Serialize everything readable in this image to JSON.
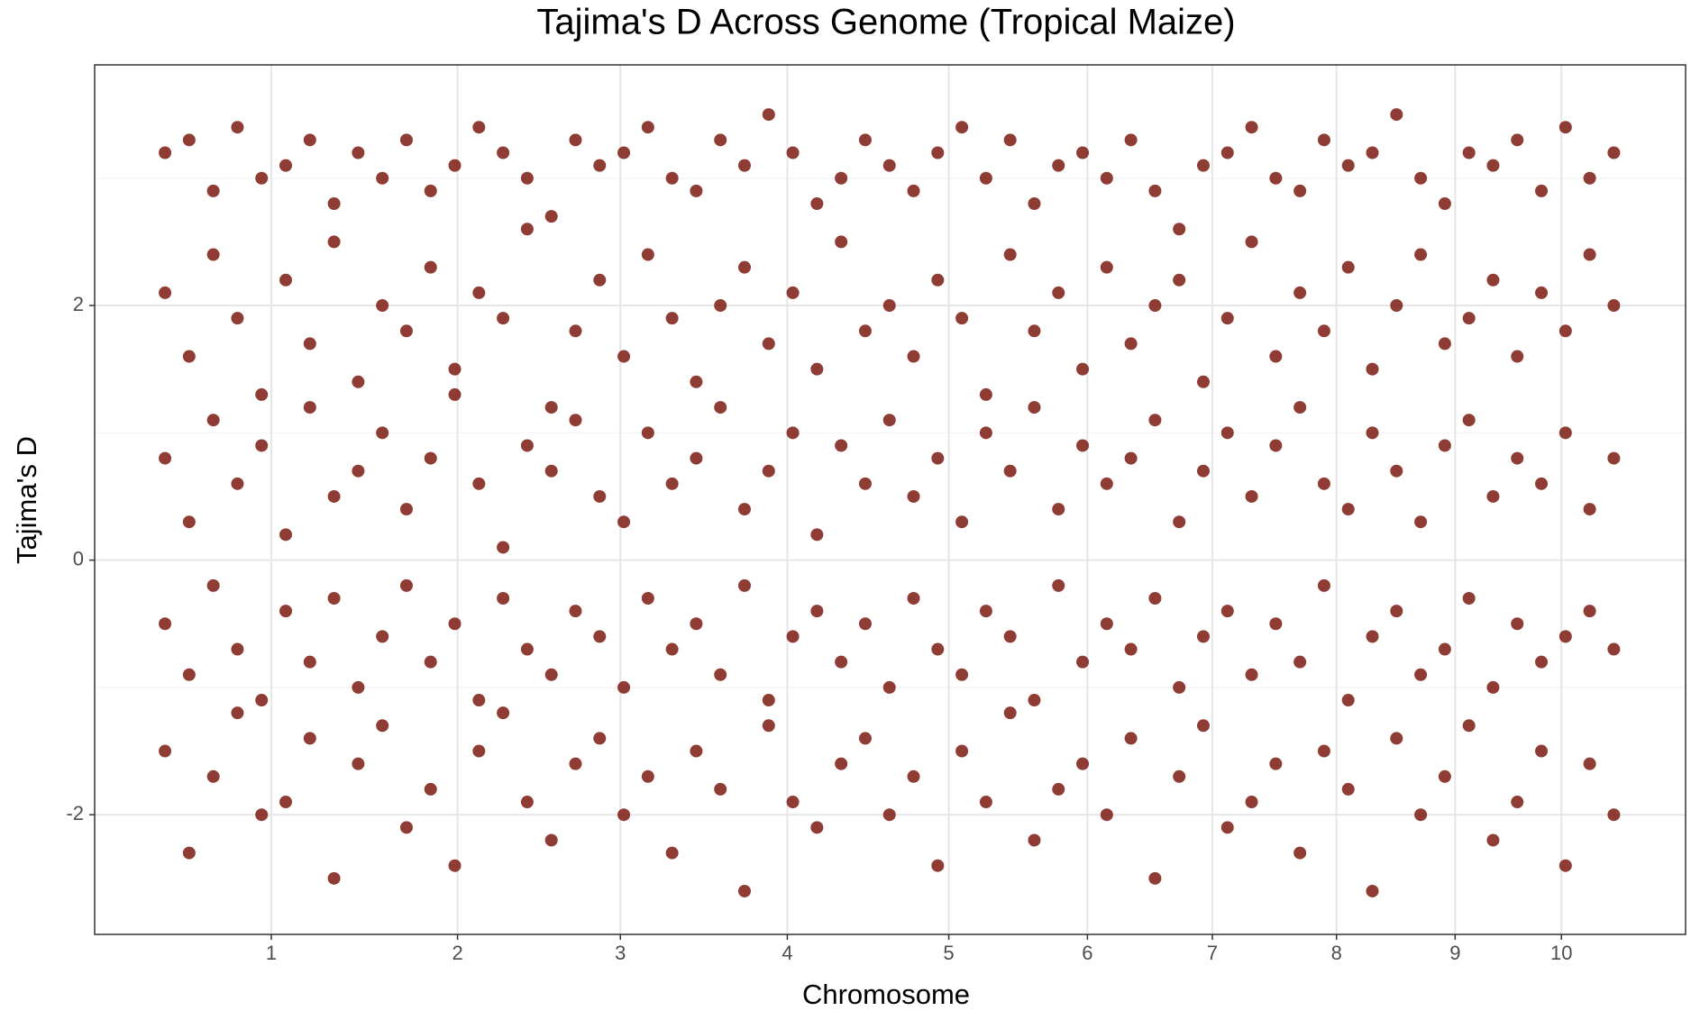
{
  "chart_data": {
    "type": "scatter",
    "title": "Tajima's D Across Genome (Tropical Maize)",
    "x_label": "Chromosome",
    "y_label": "Tajima's D",
    "xlim": [
      -102,
      2204
    ],
    "xticks": [
      {
        "value": 154,
        "label": "1"
      },
      {
        "value": 424,
        "label": "2"
      },
      {
        "value": 660,
        "label": "3"
      },
      {
        "value": 902,
        "label": "4"
      },
      {
        "value": 1136,
        "label": "5"
      },
      {
        "value": 1337,
        "label": "6"
      },
      {
        "value": 1518,
        "label": "7"
      },
      {
        "value": 1698,
        "label": "8"
      },
      {
        "value": 1870,
        "label": "9"
      },
      {
        "value": 2024,
        "label": "10"
      }
    ],
    "ylim": [
      -2.94,
      3.89
    ],
    "yticks": [
      -2,
      0,
      2
    ],
    "y_minor_ticks": [
      -1,
      1,
      3
    ],
    "grid": true,
    "x": [
      0,
      35,
      70,
      105,
      140,
      175,
      210,
      245,
      280,
      315,
      350,
      385,
      420,
      455,
      490,
      525,
      560,
      595,
      630,
      665,
      700,
      735,
      770,
      805,
      840,
      875,
      910,
      945,
      980,
      1015,
      1050,
      1085,
      1120,
      1155,
      1190,
      1225,
      1260,
      1295,
      1330,
      1365,
      1400,
      1435,
      1470,
      1505,
      1540,
      1575,
      1610,
      1645,
      1680,
      1715,
      1750,
      1785,
      1820,
      1855,
      1890,
      1925,
      1960,
      1995,
      2030,
      2065,
      2100
    ],
    "series": [
      {
        "color": "#7b1a10",
        "values": [
          3.2,
          3.3,
          2.9,
          3.4,
          3.0,
          3.1,
          3.3,
          2.8,
          3.2,
          3.0,
          3.3,
          2.9,
          3.1,
          3.4,
          3.2,
          3.0,
          2.7,
          3.3,
          3.1,
          3.2,
          3.4,
          3.0,
          2.9,
          3.3,
          3.1,
          3.5,
          3.2,
          2.8,
          3.0,
          3.3,
          3.1,
          2.9,
          3.2,
          3.4,
          3.0,
          3.3,
          2.8,
          3.1,
          3.2,
          3.0,
          3.3,
          2.9,
          2.6,
          3.1,
          3.2,
          3.4,
          3.0,
          2.9,
          3.3,
          3.1,
          3.2,
          3.5,
          3.0,
          2.8,
          3.2,
          3.1,
          3.3,
          2.9,
          3.4,
          3.0,
          3.2
        ]
      },
      {
        "color": "#7b1a10",
        "values": [
          2.1,
          1.6,
          2.4,
          1.9,
          1.3,
          2.2,
          1.7,
          2.5,
          1.4,
          2.0,
          1.8,
          2.3,
          1.5,
          2.1,
          1.9,
          2.6,
          1.2,
          1.8,
          2.2,
          1.6,
          2.4,
          1.9,
          1.4,
          2.0,
          2.3,
          1.7,
          2.1,
          1.5,
          2.5,
          1.8,
          2.0,
          1.6,
          2.2,
          1.9,
          1.3,
          2.4,
          1.8,
          2.1,
          1.5,
          2.3,
          1.7,
          2.0,
          2.2,
          1.4,
          1.9,
          2.5,
          1.6,
          2.1,
          1.8,
          2.3,
          1.5,
          2.0,
          2.4,
          1.7,
          1.9,
          2.2,
          1.6,
          2.1,
          1.8,
          2.4,
          2.0
        ]
      },
      {
        "color": "#7b1a10",
        "values": [
          0.8,
          0.3,
          1.1,
          0.6,
          0.9,
          0.2,
          1.2,
          0.5,
          0.7,
          1.0,
          0.4,
          0.8,
          1.3,
          0.6,
          0.1,
          0.9,
          0.7,
          1.1,
          0.5,
          0.3,
          1.0,
          0.6,
          0.8,
          1.2,
          0.4,
          0.7,
          1.0,
          0.2,
          0.9,
          0.6,
          1.1,
          0.5,
          0.8,
          0.3,
          1.0,
          0.7,
          1.2,
          0.4,
          0.9,
          0.6,
          0.8,
          1.1,
          0.3,
          0.7,
          1.0,
          0.5,
          0.9,
          1.2,
          0.6,
          0.4,
          1.0,
          0.7,
          0.3,
          0.9,
          1.1,
          0.5,
          0.8,
          0.6,
          1.0,
          0.4,
          0.8
        ]
      },
      {
        "color": "#7b1a10",
        "values": [
          -0.5,
          -0.9,
          -0.2,
          -0.7,
          -1.1,
          -0.4,
          -0.8,
          -0.3,
          -1.0,
          -0.6,
          -0.2,
          -0.8,
          -0.5,
          -1.1,
          -0.3,
          -0.7,
          -0.9,
          -0.4,
          -0.6,
          -1.0,
          -0.3,
          -0.7,
          -0.5,
          -0.9,
          -0.2,
          -1.1,
          -0.6,
          -0.4,
          -0.8,
          -0.5,
          -1.0,
          -0.3,
          -0.7,
          -0.9,
          -0.4,
          -0.6,
          -1.1,
          -0.2,
          -0.8,
          -0.5,
          -0.7,
          -0.3,
          -1.0,
          -0.6,
          -0.4,
          -0.9,
          -0.5,
          -0.8,
          -0.2,
          -1.1,
          -0.6,
          -0.4,
          -0.9,
          -0.7,
          -0.3,
          -1.0,
          -0.5,
          -0.8,
          -0.6,
          -0.4,
          -0.7
        ]
      },
      {
        "color": "#7b1a10",
        "values": [
          -1.5,
          -2.3,
          -1.7,
          -1.2,
          -2.0,
          -1.9,
          -1.4,
          -2.5,
          -1.6,
          -1.3,
          -2.1,
          -1.8,
          -2.4,
          -1.5,
          -1.2,
          -1.9,
          -2.2,
          -1.6,
          -1.4,
          -2.0,
          -1.7,
          -2.3,
          -1.5,
          -1.8,
          -2.6,
          -1.3,
          -1.9,
          -2.1,
          -1.6,
          -1.4,
          -2.0,
          -1.7,
          -2.4,
          -1.5,
          -1.9,
          -1.2,
          -2.2,
          -1.8,
          -1.6,
          -2.0,
          -1.4,
          -2.5,
          -1.7,
          -1.3,
          -2.1,
          -1.9,
          -1.6,
          -2.3,
          -1.5,
          -1.8,
          -2.6,
          -1.4,
          -2.0,
          -1.7,
          -1.3,
          -2.2,
          -1.9,
          -1.5,
          -2.4,
          -1.6,
          -2.0
        ]
      }
    ]
  }
}
